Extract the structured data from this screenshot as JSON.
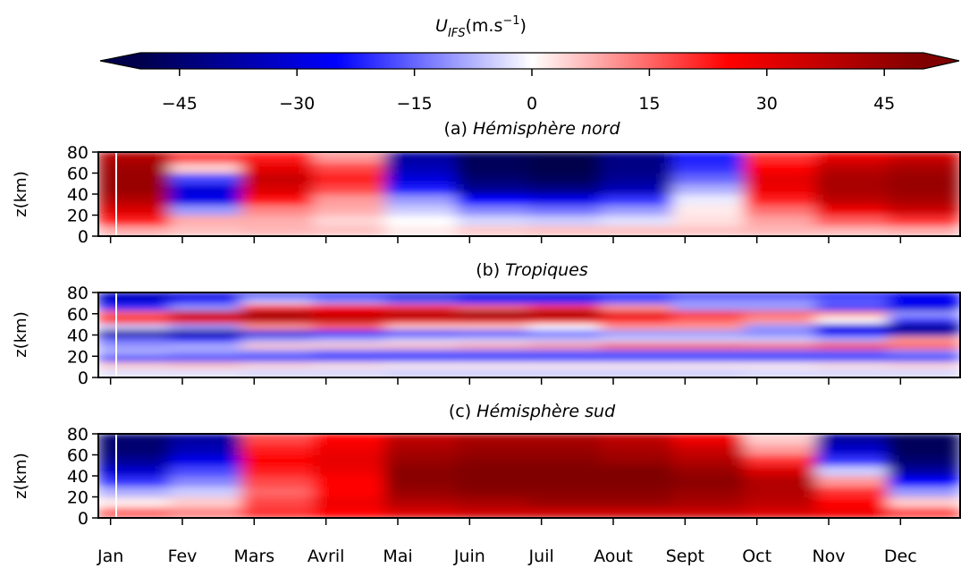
{
  "colorbar": {
    "label_main": "U",
    "label_sub": "IFS",
    "label_unit": "(m.s",
    "label_exp": "−1",
    "label_close": ")",
    "vmin": -50,
    "vmax": 50,
    "ticks": [
      -45,
      -30,
      -15,
      0,
      15,
      30,
      45
    ],
    "tick_labels": [
      "−45",
      "−30",
      "−15",
      "0",
      "15",
      "30",
      "45"
    ],
    "colormap": "seismic",
    "colors": {
      "low": "#00004c",
      "mid_low": "#0000ff",
      "center": "#ffffff",
      "mid_high": "#ff0000",
      "high": "#800000"
    }
  },
  "chart_data": [
    {
      "type": "heatmap",
      "panel_prefix": "(a) ",
      "title": "Hémisphère nord",
      "ylabel": "z(km)",
      "ylim": [
        0,
        80
      ],
      "yticks": [
        0,
        20,
        40,
        60,
        80
      ],
      "x_categories": [
        "Jan",
        "Fev",
        "Mars",
        "Avril",
        "Mai",
        "Juin",
        "Juil",
        "Aout",
        "Sept",
        "Oct",
        "Nov",
        "Dec"
      ],
      "z_levels_km": [
        5,
        15,
        25,
        35,
        45,
        55,
        65,
        75
      ],
      "wind_ms": [
        [
          8,
          6,
          7,
          6,
          2,
          5,
          6,
          6,
          6,
          7,
          7,
          8
        ],
        [
          22,
          8,
          8,
          4,
          0,
          -4,
          -5,
          -3,
          3,
          9,
          16,
          20
        ],
        [
          32,
          -10,
          12,
          8,
          -5,
          -12,
          -14,
          -10,
          2,
          14,
          28,
          35
        ],
        [
          40,
          -28,
          24,
          10,
          -10,
          -25,
          -28,
          -20,
          -2,
          22,
          38,
          42
        ],
        [
          45,
          -30,
          32,
          18,
          -22,
          -40,
          -42,
          -35,
          -8,
          28,
          42,
          45
        ],
        [
          45,
          -18,
          36,
          22,
          -30,
          -45,
          -48,
          -40,
          -15,
          30,
          42,
          45
        ],
        [
          44,
          5,
          30,
          18,
          -35,
          -48,
          -50,
          -42,
          -20,
          25,
          38,
          42
        ],
        [
          40,
          18,
          22,
          10,
          -38,
          -48,
          -50,
          -42,
          -22,
          20,
          30,
          35
        ]
      ]
    },
    {
      "type": "heatmap",
      "panel_prefix": "(b) ",
      "title": "Tropiques",
      "ylabel": "z(km)",
      "ylim": [
        0,
        80
      ],
      "yticks": [
        0,
        20,
        40,
        60,
        80
      ],
      "x_categories": [
        "Jan",
        "Fev",
        "Mars",
        "Avril",
        "Mai",
        "Juin",
        "Juil",
        "Aout",
        "Sept",
        "Oct",
        "Nov",
        "Dec"
      ],
      "z_levels_km": [
        5,
        12,
        18,
        24,
        30,
        36,
        42,
        48,
        54,
        60,
        66,
        72,
        78
      ],
      "wind_ms": [
        [
          -3,
          -3,
          -4,
          -4,
          -5,
          -5,
          -5,
          -5,
          -5,
          -4,
          -4,
          -4
        ],
        [
          5,
          6,
          4,
          3,
          2,
          2,
          2,
          2,
          2,
          2,
          3,
          4
        ],
        [
          -20,
          -20,
          -20,
          -20,
          -20,
          -20,
          -20,
          -20,
          -20,
          -20,
          -20,
          -20
        ],
        [
          -8,
          -10,
          -12,
          -15,
          -15,
          -15,
          -15,
          -15,
          -15,
          -15,
          -15,
          -12
        ],
        [
          -10,
          -8,
          5,
          5,
          6,
          8,
          10,
          15,
          15,
          14,
          18,
          15
        ],
        [
          -15,
          -20,
          -10,
          -8,
          -5,
          -5,
          -6,
          -5,
          -5,
          -5,
          -8,
          10
        ],
        [
          -40,
          -40,
          -30,
          -25,
          -25,
          -20,
          -15,
          -10,
          -10,
          -12,
          -25,
          -35
        ],
        [
          -5,
          -10,
          10,
          15,
          5,
          5,
          0,
          10,
          10,
          -10,
          -30,
          -40
        ],
        [
          25,
          30,
          35,
          35,
          30,
          30,
          28,
          20,
          15,
          10,
          0,
          -20
        ],
        [
          15,
          35,
          45,
          35,
          42,
          48,
          45,
          30,
          20,
          15,
          10,
          -10
        ],
        [
          -20,
          -10,
          20,
          25,
          20,
          15,
          20,
          10,
          -10,
          -10,
          -20,
          -30
        ],
        [
          -30,
          -20,
          -5,
          -10,
          -15,
          -20,
          -20,
          -15,
          -10,
          -10,
          -15,
          -25
        ],
        [
          -35,
          -30,
          -20,
          -25,
          -30,
          -30,
          -30,
          -25,
          -20,
          -20,
          -25,
          -30
        ]
      ]
    },
    {
      "type": "heatmap",
      "panel_prefix": "(c) ",
      "title": "Hémisphère sud",
      "ylabel": "z(km)",
      "ylim": [
        0,
        80
      ],
      "yticks": [
        0,
        20,
        40,
        60,
        80
      ],
      "x_categories": [
        "Jan",
        "Fev",
        "Mars",
        "Avril",
        "Mai",
        "Juin",
        "Juil",
        "Aout",
        "Sept",
        "Oct",
        "Nov",
        "Dec"
      ],
      "z_levels_km": [
        5,
        15,
        25,
        35,
        45,
        55,
        65,
        75
      ],
      "wind_ms": [
        [
          15,
          12,
          20,
          25,
          32,
          35,
          35,
          35,
          35,
          32,
          28,
          18
        ],
        [
          2,
          5,
          18,
          28,
          40,
          42,
          45,
          45,
          42,
          38,
          25,
          5
        ],
        [
          -8,
          -5,
          15,
          25,
          45,
          48,
          48,
          48,
          45,
          40,
          20,
          -10
        ],
        [
          -20,
          -12,
          18,
          25,
          48,
          50,
          50,
          50,
          48,
          40,
          10,
          -25
        ],
        [
          -32,
          -18,
          22,
          28,
          48,
          50,
          50,
          50,
          45,
          32,
          -5,
          -38
        ],
        [
          -40,
          -28,
          25,
          30,
          45,
          48,
          48,
          45,
          40,
          20,
          -20,
          -45
        ],
        [
          -45,
          -35,
          22,
          28,
          42,
          45,
          45,
          42,
          35,
          10,
          -32,
          -48
        ],
        [
          -45,
          -38,
          18,
          25,
          38,
          42,
          42,
          38,
          28,
          5,
          -38,
          -48
        ]
      ]
    }
  ],
  "x_axis": {
    "labels": [
      "Jan",
      "Fev",
      "Mars",
      "Avril",
      "Mai",
      "Juin",
      "Juil",
      "Aout",
      "Sept",
      "Oct",
      "Nov",
      "Dec"
    ]
  }
}
